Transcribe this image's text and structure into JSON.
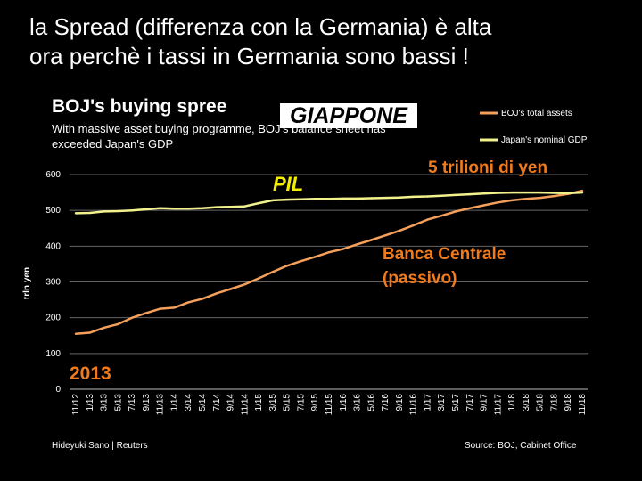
{
  "slide": {
    "title_line1": "la Spread (differenza con la Germania) è alta",
    "title_line2": "ora perchè i tassi in Germania sono bassi !"
  },
  "chart_data": {
    "type": "line",
    "title": "BOJ's buying spree",
    "subtitle": "With massive asset buying programme, BOJ's balance sheet has exceeded Japan's GDP",
    "ylabel": "trln yen",
    "xlabel": "",
    "ylim": [
      0,
      600
    ],
    "yticks": [
      0,
      100,
      200,
      300,
      400,
      500,
      600
    ],
    "grid": true,
    "legend": "top-right",
    "x_ticks": [
      "11/12",
      "1/13",
      "3/13",
      "5/13",
      "7/13",
      "9/13",
      "11/13",
      "1/14",
      "3/14",
      "5/14",
      "7/14",
      "9/14",
      "11/14",
      "1/15",
      "3/15",
      "5/15",
      "7/15",
      "9/15",
      "11/15",
      "1/16",
      "3/16",
      "5/16",
      "7/16",
      "9/16",
      "11/16",
      "1/17",
      "3/17",
      "5/17",
      "7/17",
      "9/17",
      "11/17",
      "1/18",
      "3/18",
      "5/18",
      "7/18",
      "9/18",
      "11/18"
    ],
    "series": [
      {
        "name": "BOJ's total assets",
        "color": "#f5a05a",
        "values": [
          155,
          158,
          172,
          182,
          200,
          213,
          225,
          228,
          243,
          253,
          268,
          280,
          293,
          310,
          328,
          345,
          358,
          370,
          383,
          392,
          405,
          417,
          430,
          443,
          458,
          474,
          485,
          497,
          506,
          514,
          522,
          528,
          532,
          535,
          540,
          546,
          555
        ]
      },
      {
        "name": "Japan's nominal GDP",
        "color": "#f2f28c",
        "values": [
          492,
          493,
          497,
          498,
          500,
          503,
          506,
          505,
          505,
          506,
          509,
          510,
          511,
          520,
          528,
          530,
          531,
          532,
          532,
          533,
          533,
          534,
          535,
          536,
          538,
          539,
          541,
          543,
          545,
          547,
          549,
          550,
          550,
          550,
          549,
          548,
          550
        ]
      }
    ],
    "annotations": {
      "pil": "PIL",
      "trillion": "5 trilioni di yen",
      "bank_line1": "Banca Centrale",
      "bank_line2": "(passivo)",
      "year": "2013"
    }
  },
  "stamp": "GIAPPONE",
  "footer": {
    "left": "Hideyuki Sano | Reuters",
    "right": "Source: BOJ, Cabinet Office"
  }
}
